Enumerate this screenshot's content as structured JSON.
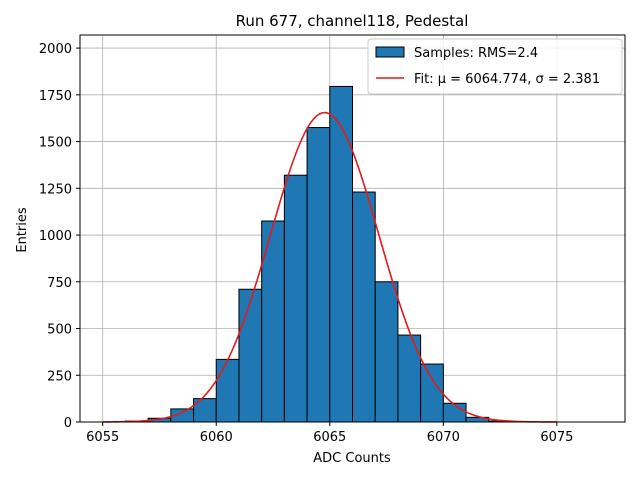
{
  "chart_data": {
    "type": "bar",
    "title": "Run 677, channel118, Pedestal",
    "xlabel": "ADC Counts",
    "ylabel": "Entries",
    "xlim": [
      6054,
      6078
    ],
    "ylim": [
      0,
      2070
    ],
    "xticks": [
      6055,
      6060,
      6065,
      6070,
      6075
    ],
    "yticks": [
      0,
      250,
      500,
      750,
      1000,
      1250,
      1500,
      1750,
      2000
    ],
    "grid": true,
    "legend_position": "top-right",
    "histogram": {
      "name": "Samples: RMS=2.4",
      "color": "#1f77b4",
      "edge_color": "#000000",
      "bin_edges": [
        6056,
        6057,
        6058,
        6059,
        6060,
        6061,
        6062,
        6063,
        6064,
        6065,
        6066,
        6067,
        6068,
        6069,
        6070,
        6071,
        6072,
        6073
      ],
      "counts": [
        5,
        20,
        70,
        125,
        335,
        710,
        1075,
        1320,
        1575,
        1795,
        1230,
        750,
        465,
        310,
        100,
        25,
        5
      ]
    },
    "fit": {
      "name": "Fit: μ = 6064.774, σ = 2.381",
      "color": "#e41a1c",
      "mu": 6064.774,
      "sigma": 2.381,
      "amplitude": 1655,
      "x_range": [
        6055,
        6075
      ]
    }
  }
}
